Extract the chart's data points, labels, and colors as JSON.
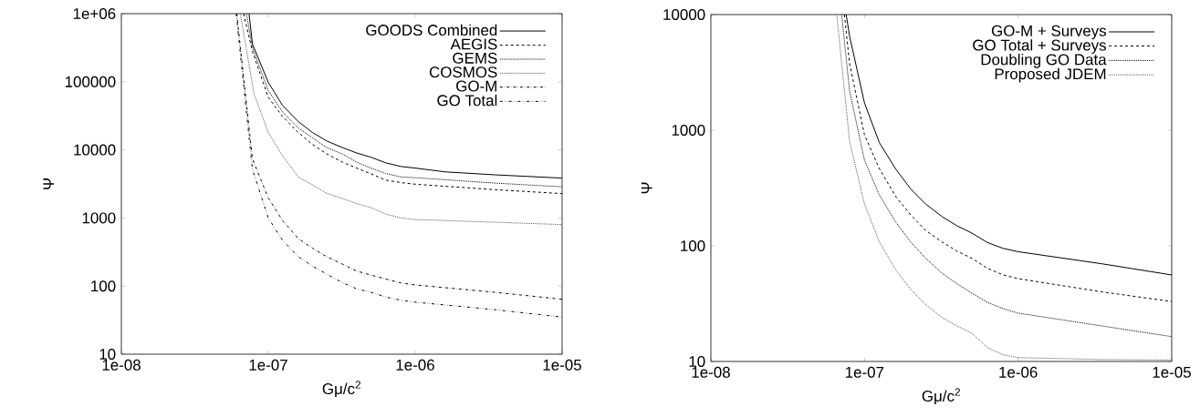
{
  "chart_data": [
    {
      "type": "line",
      "xlabel": "Gμ/c$^{2}$",
      "ylabel": "Ψ",
      "log": "xy",
      "legend": "top right",
      "xlim": [
        1e-08,
        1e-05
      ],
      "ylim": [
        10,
        1000000
      ],
      "xticks": [
        {
          "value": 1e-08,
          "label": "1e-08"
        },
        {
          "value": 1e-07,
          "label": "1e-07"
        },
        {
          "value": 1e-06,
          "label": "1e-06"
        },
        {
          "value": 1e-05,
          "label": "1e-05"
        }
      ],
      "yticks": [
        10,
        100,
        1000,
        10000,
        100000,
        {
          "value": 1000000,
          "label": "1e+06"
        }
      ],
      "series": [
        {
          "name": "GOODS Combined",
          "color": "#000000",
          "line_style": "solid",
          "x": [
            7.4e-08,
            7.8e-08,
            1e-07,
            1.25e-07,
            1.6e-07,
            2e-07,
            2.5e-07,
            3.2e-07,
            4e-07,
            5e-07,
            6.3e-07,
            8e-07,
            1e-06,
            1.6e-06,
            3.5e-06,
            1e-05
          ],
          "values": [
            1000000,
            360000,
            98000,
            45000,
            26000,
            18000,
            13500,
            10800,
            9000,
            7800,
            6450,
            5700,
            5400,
            4750,
            4300,
            3850
          ]
        },
        {
          "name": "AEGIS",
          "color": "#000000",
          "line_style": "dashed",
          "x": [
            6.8e-08,
            7.8e-08,
            1e-07,
            1.25e-07,
            1.6e-07,
            2e-07,
            2.5e-07,
            3.2e-07,
            4e-07,
            5e-07,
            6.3e-07,
            8e-07,
            1e-06,
            3.5e-06,
            1e-05
          ],
          "values": [
            1000000,
            280000,
            59000,
            31000,
            18000,
            12000,
            8700,
            6600,
            5400,
            4450,
            3600,
            3300,
            3130,
            2600,
            2280
          ]
        },
        {
          "name": "GEMS",
          "color": "#000000",
          "line_style": "dotted",
          "x": [
            7.1e-08,
            7.8e-08,
            1e-07,
            1.25e-07,
            1.6e-07,
            2e-07,
            2.5e-07,
            3.2e-07,
            4e-07,
            5e-07,
            6.3e-07,
            8e-07,
            1e-06,
            3.5e-06,
            1e-05
          ],
          "values": [
            1000000,
            320000,
            74000,
            36000,
            21000,
            15000,
            10800,
            8700,
            6600,
            5400,
            4500,
            4000,
            3900,
            3250,
            2870
          ]
        },
        {
          "name": "COSMOS",
          "color": "#555555",
          "line_style": "dotted",
          "x": [
            6.45e-08,
            8e-08,
            1e-07,
            1.25e-07,
            1.6e-07,
            2e-07,
            2.5e-07,
            3.2e-07,
            4e-07,
            5e-07,
            6.3e-07,
            8e-07,
            1e-06,
            3.5e-06,
            1e-05
          ],
          "values": [
            1000000,
            66000,
            18000,
            8200,
            4000,
            3060,
            2300,
            1930,
            1620,
            1420,
            1140,
            1000,
            950,
            865,
            800
          ]
        },
        {
          "name": "GO-M",
          "color": "#000000",
          "line_style": "dashdot",
          "x": [
            6.1e-08,
            7.8e-08,
            1e-07,
            1.25e-07,
            1.6e-07,
            2e-07,
            2.5e-07,
            3.2e-07,
            4e-07,
            5e-07,
            6.3e-07,
            8e-07,
            1e-06,
            3.5e-06,
            1e-05
          ],
          "values": [
            1000000,
            7400,
            1970,
            920,
            500,
            360,
            270,
            210,
            166,
            145,
            127,
            111,
            104,
            81,
            64
          ]
        },
        {
          "name": "GO Total",
          "color": "#000000",
          "line_style": "dashdotdot",
          "x": [
            6.05e-08,
            7.8e-08,
            1e-07,
            1.25e-07,
            1.6e-07,
            2e-07,
            2.5e-07,
            3.2e-07,
            4e-07,
            5e-07,
            6.3e-07,
            8e-07,
            1e-06,
            3.5e-06,
            1e-05
          ],
          "values": [
            1000000,
            5200,
            1000,
            470,
            270,
            196,
            150,
            112,
            91,
            81,
            69,
            62,
            58,
            45,
            35
          ]
        }
      ]
    },
    {
      "type": "line",
      "xlabel": "Gμ/c$^{2}$",
      "ylabel": "Ψ",
      "log": "xy",
      "legend": "top right",
      "xlim": [
        1e-08,
        1e-05
      ],
      "ylim": [
        10,
        10000
      ],
      "xticks": [
        {
          "value": 1e-08,
          "label": "1e-08"
        },
        {
          "value": 1e-07,
          "label": "1e-07"
        },
        {
          "value": 1e-06,
          "label": "1e-06"
        },
        {
          "value": 1e-05,
          "label": "1e-05"
        }
      ],
      "yticks": [
        10,
        100,
        1000,
        10000
      ],
      "series": [
        {
          "name": "GO-M + Surveys",
          "color": "#000000",
          "line_style": "solid",
          "x": [
            7.6e-08,
            8e-08,
            1e-07,
            1.25e-07,
            1.6e-07,
            2e-07,
            2.5e-07,
            3.2e-07,
            4e-07,
            5e-07,
            6.3e-07,
            8e-07,
            1e-06,
            3.5e-06,
            1e-05
          ],
          "values": [
            10000,
            6500,
            1720,
            780,
            460,
            310,
            230,
            179,
            149,
            129,
            107,
            95,
            89,
            70,
            56
          ]
        },
        {
          "name": "GO Total + Surveys",
          "color": "#000000",
          "line_style": "dashed",
          "x": [
            7.4e-08,
            8e-08,
            1e-07,
            1.25e-07,
            1.6e-07,
            2e-07,
            2.5e-07,
            3.2e-07,
            4e-07,
            5e-07,
            6.3e-07,
            8e-07,
            1e-06,
            3.5e-06,
            1e-05
          ],
          "values": [
            10000,
            3760,
            910,
            465,
            266,
            185,
            136,
            108,
            90,
            78,
            64,
            56,
            52,
            40,
            33
          ]
        },
        {
          "name": "Doubling GO Data",
          "color": "#000000",
          "line_style": "dotted",
          "x": [
            7.1e-08,
            8e-08,
            1e-07,
            1.25e-07,
            1.6e-07,
            2e-07,
            2.5e-07,
            3.2e-07,
            4e-07,
            5e-07,
            6.3e-07,
            8e-07,
            1e-06,
            3.5e-06,
            1e-05
          ],
          "values": [
            10000,
            2180,
            550,
            275,
            160,
            108,
            78,
            58,
            47,
            39,
            32.5,
            28.6,
            26.2,
            20.3,
            16.4
          ]
        },
        {
          "name": "Proposed JDEM",
          "color": "#555555",
          "line_style": "dotted",
          "x": [
            6.6e-08,
            8e-08,
            1e-07,
            1.25e-07,
            1.6e-07,
            2e-07,
            2.5e-07,
            3.2e-07,
            4e-07,
            5e-07,
            6.3e-07,
            8e-07,
            1e-06,
            3.5e-06,
            1e-05
          ],
          "values": [
            10000,
            800,
            230,
            108,
            62,
            42,
            31,
            24,
            20.3,
            17.6,
            13.2,
            11.4,
            10.8,
            10.4,
            10.3
          ]
        }
      ]
    }
  ]
}
